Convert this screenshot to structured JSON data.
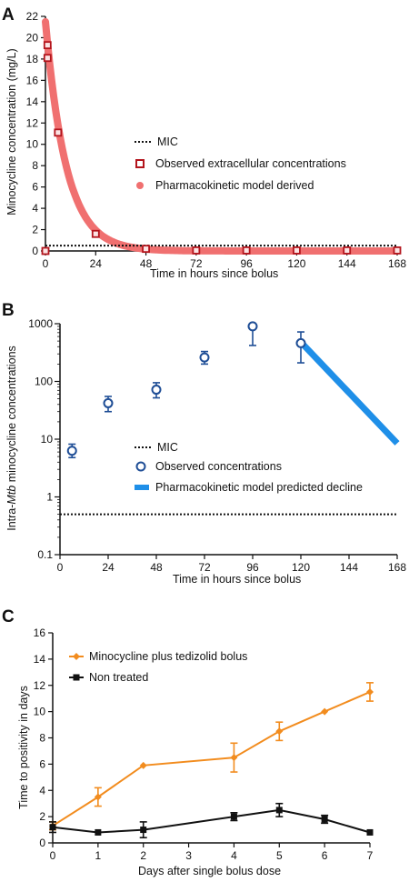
{
  "chart_data": [
    {
      "panel_label": "A",
      "type": "scatter",
      "xlabel": "Time in hours since bolus",
      "ylabel": "Minocycline concentration (mg/L)",
      "xlim": [
        0,
        168
      ],
      "ylim": [
        0,
        22
      ],
      "xticks": [
        0,
        24,
        48,
        72,
        96,
        120,
        144,
        168
      ],
      "yticks": [
        0,
        2,
        4,
        6,
        8,
        10,
        12,
        14,
        16,
        18,
        20,
        22
      ],
      "colors": {
        "observed": "#b3141c",
        "model": "#f07070",
        "mic": "#111111"
      },
      "legend": [
        "MIC",
        "Observed extracellular concentrations",
        "Pharmacokinetic model  derived"
      ],
      "mic": 0.5,
      "observed": {
        "x": [
          0,
          1,
          1,
          6,
          24,
          48,
          72,
          96,
          120,
          144,
          168
        ],
        "y": [
          0,
          19.3,
          18.1,
          11.1,
          1.6,
          0.2,
          0.05,
          0.05,
          0.05,
          0.05,
          0.05
        ]
      },
      "model": {
        "start": 21.5,
        "decay_per_hour": 0.1
      }
    },
    {
      "panel_label": "B",
      "type": "scatter",
      "xlabel": "Time in hours since bolus",
      "ylabel_parts": [
        "Intra-",
        "Mtb",
        " minocycline concentrations"
      ],
      "yscale": "log",
      "xlim": [
        0,
        168
      ],
      "ylim": [
        0.1,
        1000
      ],
      "xticks": [
        0,
        24,
        48,
        72,
        96,
        120,
        144,
        168
      ],
      "ytick_labels": [
        "0.1",
        "1",
        "10",
        "100",
        "1000"
      ],
      "colors": {
        "observed": "#1f4e96",
        "model": "#1f8fe8",
        "mic": "#111111"
      },
      "legend": [
        "MIC",
        "Observed concentrations",
        "Pharmacokinetic model predicted decline"
      ],
      "mic": 0.5,
      "observed": {
        "x": [
          6,
          24,
          48,
          72,
          96,
          120
        ],
        "y": [
          6.3,
          42,
          72,
          260,
          900,
          460
        ],
        "err_low": [
          4.8,
          30,
          52,
          200,
          420,
          210
        ],
        "err_high": [
          8.2,
          55,
          95,
          330,
          null,
          720
        ]
      },
      "model": {
        "x": [
          120,
          168
        ],
        "y": [
          480,
          8.5
        ]
      }
    },
    {
      "panel_label": "C",
      "type": "line",
      "xlabel": "Days after single bolus dose",
      "ylabel": "Time to positivity in days",
      "xlim": [
        0,
        7
      ],
      "ylim": [
        0,
        16
      ],
      "xticks": [
        0,
        1,
        2,
        3,
        4,
        5,
        6,
        7
      ],
      "yticks": [
        0,
        2,
        4,
        6,
        8,
        10,
        12,
        14,
        16
      ],
      "series": [
        {
          "name": "Minocycline plus tedizolid bolus",
          "color": "#f28c1e",
          "x": [
            0,
            1,
            2,
            4,
            5,
            6,
            7
          ],
          "y": [
            1.3,
            3.5,
            5.9,
            6.5,
            8.5,
            10.0,
            11.5
          ],
          "err": [
            0.3,
            0.7,
            0.0,
            1.1,
            0.7,
            0.0,
            0.7
          ]
        },
        {
          "name": "Non treated",
          "color": "#111111",
          "x": [
            0,
            1,
            2,
            4,
            5,
            6,
            7
          ],
          "y": [
            1.2,
            0.8,
            1.0,
            2.0,
            2.5,
            1.8,
            0.8
          ],
          "err": [
            0.4,
            0.0,
            0.6,
            0.3,
            0.5,
            0.3,
            0.0
          ]
        }
      ]
    }
  ]
}
